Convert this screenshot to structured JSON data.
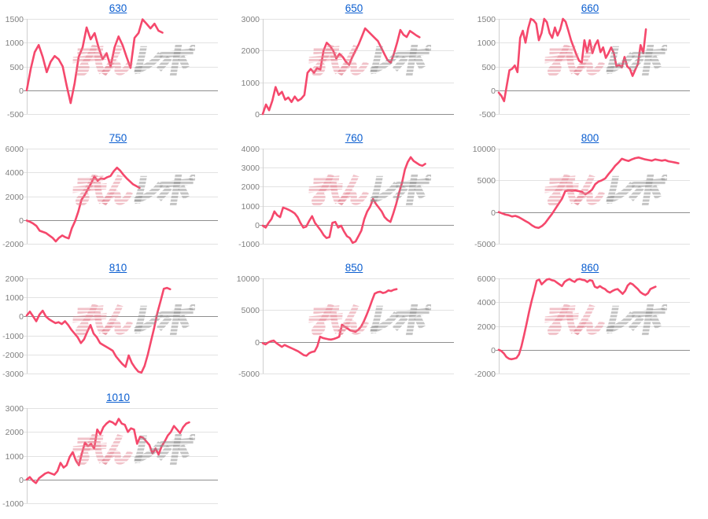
{
  "watermark": {
    "pink_text": "みん",
    "gray_text": "レポ"
  },
  "style": {
    "line_color": "#f5486c",
    "grid_color": "#e2e2e2",
    "zero_color": "#8f8f8f",
    "axis_color": "#cfcfcf",
    "label_color": "#808080",
    "title_color": "#0b5ed0",
    "wm_pink": "#e2808d",
    "wm_gray": "#8f8f8f"
  },
  "chart_data": [
    {
      "type": "line",
      "title": "630",
      "ylim": [
        -500,
        1500
      ],
      "tick_step": 500,
      "end_frac": 0.71,
      "values": [
        0,
        450,
        800,
        950,
        700,
        380,
        600,
        720,
        650,
        500,
        100,
        -270,
        150,
        700,
        900,
        1320,
        1070,
        1200,
        900,
        650,
        780,
        500,
        900,
        1130,
        950,
        700,
        470,
        1100,
        1200,
        1490,
        1400,
        1300,
        1400,
        1250,
        1210
      ]
    },
    {
      "type": "line",
      "title": "650",
      "ylim": [
        0,
        3000
      ],
      "tick_step": 1000,
      "end_frac": 0.82,
      "values": [
        0,
        300,
        120,
        420,
        850,
        600,
        700,
        450,
        520,
        380,
        550,
        420,
        480,
        600,
        1300,
        1420,
        1300,
        1450,
        1400,
        2000,
        2250,
        2150,
        2000,
        1750,
        1900,
        1800,
        1650,
        1550,
        1800,
        2000,
        2200,
        2450,
        2700,
        2600,
        2500,
        2400,
        2300,
        2100,
        1900,
        1700,
        1620,
        1900,
        2250,
        2650,
        2500,
        2430,
        2620,
        2550,
        2480,
        2420
      ]
    },
    {
      "type": "line",
      "title": "660",
      "ylim": [
        -500,
        1500
      ],
      "tick_step": 500,
      "end_frac": 0.77,
      "values": [
        -50,
        -120,
        -230,
        100,
        420,
        450,
        520,
        380,
        1100,
        1250,
        1000,
        1300,
        1500,
        1470,
        1400,
        1050,
        1200,
        1500,
        1430,
        1200,
        1100,
        1320,
        1150,
        1280,
        1500,
        1440,
        1250,
        1050,
        900,
        750,
        620,
        580,
        1050,
        800,
        1050,
        780,
        950,
        1050,
        800,
        900,
        680,
        780,
        900,
        780,
        500,
        530,
        480,
        700,
        500,
        450,
        300,
        430,
        550,
        950,
        780,
        1280
      ]
    },
    {
      "type": "line",
      "title": "750",
      "ylim": [
        -2000,
        6000
      ],
      "tick_step": 2000,
      "end_frac": 0.59,
      "values": [
        -50,
        -150,
        -300,
        -500,
        -900,
        -1000,
        -1100,
        -1300,
        -1500,
        -1800,
        -1500,
        -1300,
        -1450,
        -1550,
        -700,
        -100,
        700,
        1700,
        2100,
        2600,
        3100,
        3650,
        3300,
        3500,
        3450,
        3600,
        3700,
        4100,
        4400,
        4150,
        3800,
        3500,
        3250,
        3000,
        2850,
        2700
      ]
    },
    {
      "type": "line",
      "title": "760",
      "ylim": [
        -1000,
        4000
      ],
      "tick_step": 1000,
      "end_frac": 0.85,
      "values": [
        -50,
        -150,
        100,
        300,
        700,
        500,
        400,
        900,
        850,
        780,
        700,
        600,
        400,
        100,
        -150,
        -100,
        200,
        450,
        100,
        -100,
        -300,
        -550,
        -700,
        -650,
        100,
        150,
        -150,
        -50,
        -350,
        -600,
        -700,
        -950,
        -880,
        -600,
        -300,
        300,
        700,
        950,
        1350,
        1100,
        900,
        700,
        400,
        250,
        150,
        600,
        1100,
        1700,
        2200,
        2900,
        3300,
        3550,
        3350,
        3250,
        3150,
        3100,
        3200
      ]
    },
    {
      "type": "line",
      "title": "800",
      "ylim": [
        -5000,
        10000
      ],
      "tick_step": 5000,
      "end_frac": 0.94,
      "values": [
        0,
        -200,
        -400,
        -500,
        -700,
        -600,
        -800,
        -1100,
        -1400,
        -1700,
        -2100,
        -2400,
        -2500,
        -2200,
        -1700,
        -1000,
        -300,
        500,
        1300,
        2100,
        3300,
        3400,
        3350,
        3400,
        3300,
        3200,
        2800,
        3100,
        3500,
        4400,
        4800,
        5000,
        5300,
        6000,
        6600,
        7300,
        7800,
        8400,
        8200,
        8050,
        8300,
        8500,
        8600,
        8450,
        8300,
        8200,
        8100,
        8300,
        8200,
        8100,
        8200,
        8000,
        7900,
        7800,
        7700
      ]
    },
    {
      "type": "line",
      "title": "810",
      "ylim": [
        -3000,
        2000
      ],
      "tick_step": 1000,
      "end_frac": 0.75,
      "values": [
        50,
        250,
        0,
        -250,
        100,
        300,
        0,
        -150,
        -250,
        -350,
        -300,
        -400,
        -250,
        -450,
        -700,
        -900,
        -1100,
        -1400,
        -1200,
        -800,
        -450,
        -900,
        -1100,
        -1400,
        -1500,
        -1600,
        -1700,
        -1800,
        -2100,
        -2300,
        -2500,
        -2650,
        -2050,
        -2450,
        -2700,
        -2900,
        -2950,
        -2600,
        -2000,
        -1300,
        -600,
        200,
        800,
        1450,
        1500,
        1430
      ]
    },
    {
      "type": "line",
      "title": "850",
      "ylim": [
        -5000,
        10000
      ],
      "tick_step": 5000,
      "end_frac": 0.7,
      "values": [
        -200,
        -400,
        -100,
        100,
        200,
        -200,
        -500,
        -800,
        -500,
        -700,
        -900,
        -1100,
        -1300,
        -1500,
        -1800,
        -2100,
        -2200,
        -1800,
        -1600,
        -1500,
        -700,
        800,
        600,
        500,
        400,
        350,
        450,
        600,
        800,
        2700,
        2400,
        2100,
        1800,
        1700,
        1600,
        1900,
        2400,
        3200,
        4200,
        5300,
        6500,
        7600,
        7800,
        7900,
        7700,
        7800,
        8100,
        8000,
        8200,
        8300
      ]
    },
    {
      "type": "line",
      "title": "860",
      "ylim": [
        -2000,
        6000
      ],
      "tick_step": 2000,
      "end_frac": 0.82,
      "values": [
        0,
        -100,
        -300,
        -600,
        -750,
        -800,
        -750,
        -700,
        -400,
        300,
        1200,
        2200,
        3200,
        4100,
        4900,
        5800,
        5900,
        5500,
        5700,
        5900,
        5950,
        5850,
        5800,
        5650,
        5500,
        5350,
        5700,
        5850,
        5950,
        5800,
        5700,
        5900,
        5950,
        5880,
        5850,
        5700,
        5850,
        5800,
        5300,
        5200,
        5350,
        5200,
        5100,
        4900,
        4800,
        4950,
        5050,
        5100,
        4900,
        4700,
        4950,
        5400,
        5600,
        5500,
        5300,
        5100,
        4850,
        4700,
        4600,
        4750,
        5100,
        5200,
        5300
      ]
    },
    {
      "type": "line",
      "title": "1010",
      "ylim": [
        -1000,
        3000
      ],
      "tick_step": 1000,
      "end_frac": 0.85,
      "values": [
        0,
        100,
        -50,
        -150,
        50,
        150,
        250,
        300,
        250,
        200,
        350,
        700,
        500,
        600,
        950,
        1150,
        800,
        600,
        1100,
        1550,
        1400,
        1500,
        1300,
        2100,
        1900,
        2200,
        2350,
        2450,
        2400,
        2300,
        2550,
        2350,
        2300,
        2000,
        2150,
        2100,
        1500,
        1800,
        1750,
        1600,
        1450,
        1100,
        1300,
        1050,
        1400,
        1600,
        1850,
        2000,
        2250,
        2100,
        1950,
        2200,
        2350,
        2400
      ]
    }
  ]
}
